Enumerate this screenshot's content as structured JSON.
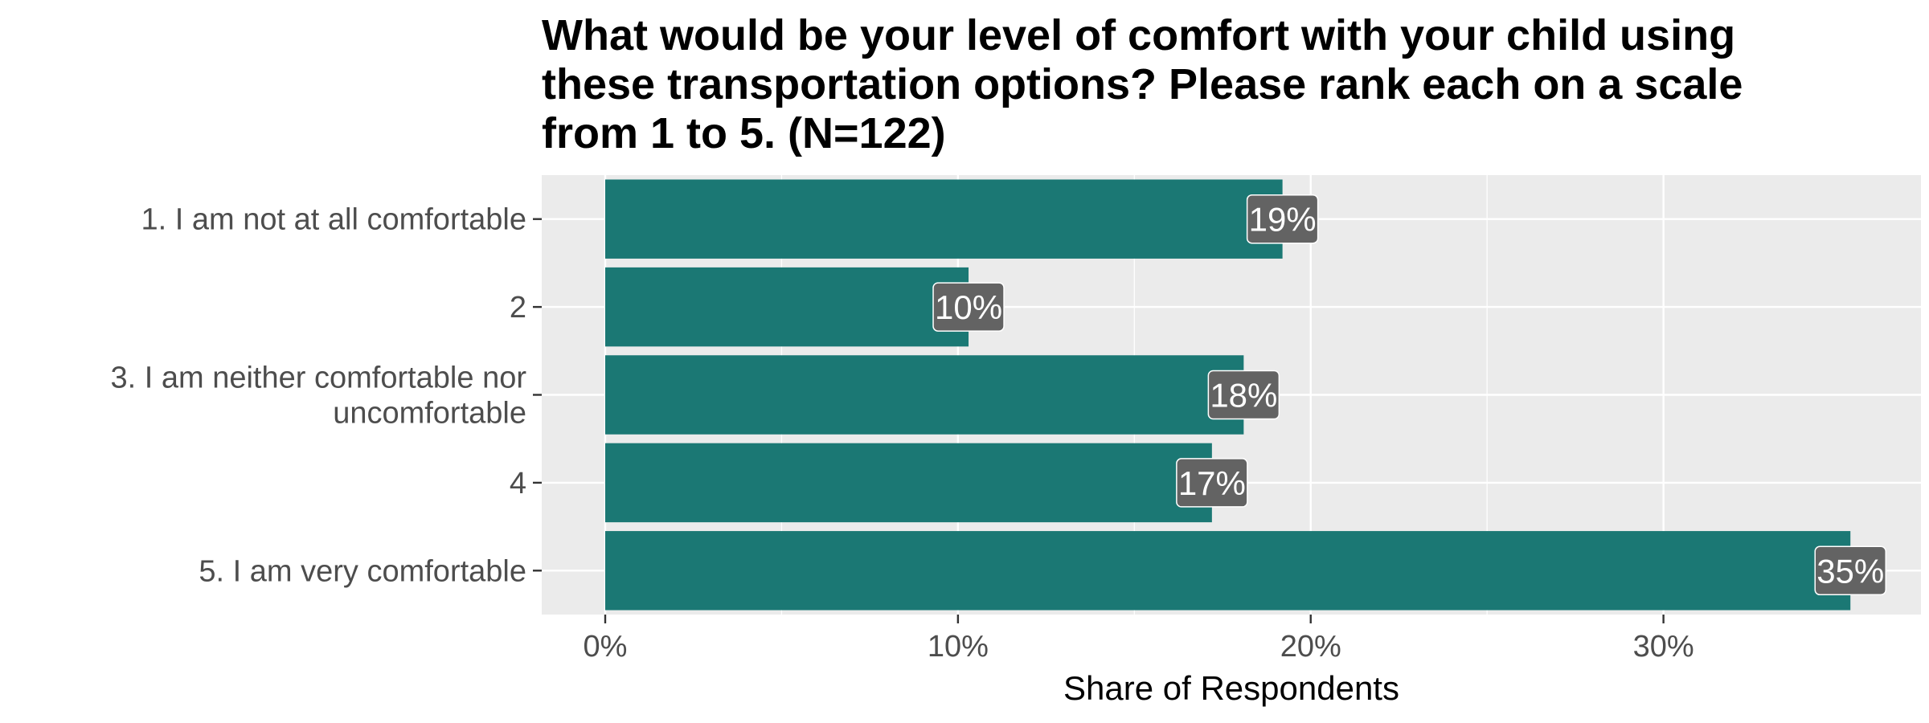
{
  "chart_data": {
    "type": "bar",
    "orientation": "horizontal",
    "title_lines": [
      "What would be your level of comfort with your child using",
      "these transportation options? Please rank each on a scale",
      "from 1 to 5. (N=122)"
    ],
    "categories": [
      [
        "1. I am not at all comfortable"
      ],
      [
        "2"
      ],
      [
        "3. I am neither comfortable nor",
        "uncomfortable"
      ],
      [
        "4"
      ],
      [
        "5. I am very comfortable"
      ]
    ],
    "values": [
      19.2,
      10.3,
      18.1,
      17.2,
      35.3
    ],
    "data_labels": [
      "19%",
      "10%",
      "18%",
      "17%",
      "35%"
    ],
    "xlabel": "Share of Respondents",
    "ylabel": "",
    "xlim": [
      -1.8,
      37.3
    ],
    "x_ticks": [
      0,
      10,
      20,
      30
    ],
    "x_tick_labels": [
      "0%",
      "10%",
      "20%",
      "30%"
    ],
    "grid": true,
    "colors": {
      "bar": "#1b7874",
      "panel_background": "#ebebeb",
      "grid": "#ffffff",
      "label_box": "#636363",
      "label_text": "#ffffff"
    }
  }
}
